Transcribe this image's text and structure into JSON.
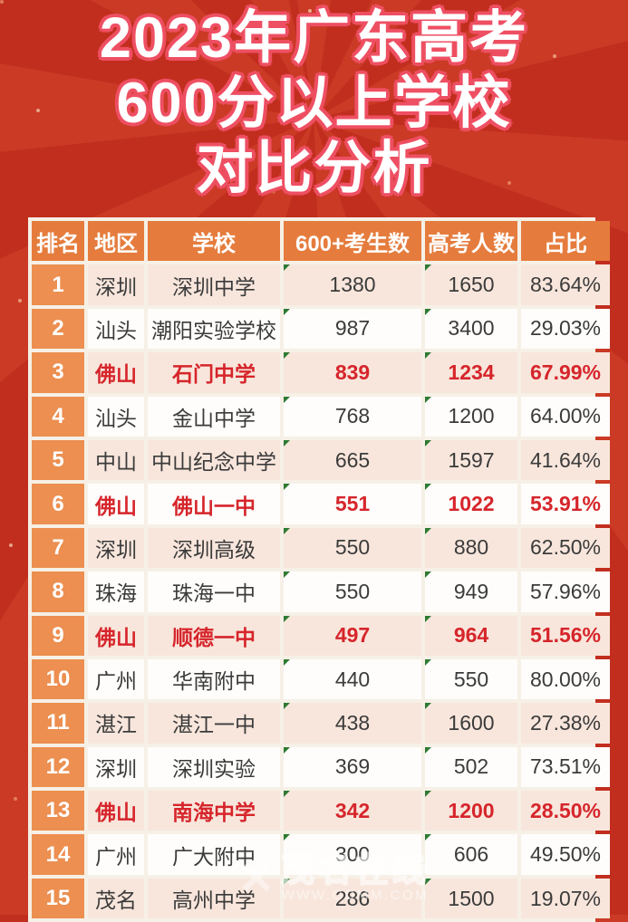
{
  "title": {
    "lines": [
      "2023年广东高考",
      "600分以上学校",
      "对比分析"
    ]
  },
  "chart_data": {
    "type": "table",
    "title": "2023年广东高考600分以上学校对比分析",
    "columns": [
      "排名",
      "地区",
      "学校",
      "600+考生数",
      "高考人数",
      "占比"
    ],
    "rows": [
      [
        "1",
        "深圳",
        "深圳中学",
        "1380",
        "1650",
        "83.64%"
      ],
      [
        "2",
        "汕头",
        "潮阳实验学校",
        "987",
        "3400",
        "29.03%"
      ],
      [
        "3",
        "佛山",
        "石门中学",
        "839",
        "1234",
        "67.99%"
      ],
      [
        "4",
        "汕头",
        "金山中学",
        "768",
        "1200",
        "64.00%"
      ],
      [
        "5",
        "中山",
        "中山纪念中学",
        "665",
        "1597",
        "41.64%"
      ],
      [
        "6",
        "佛山",
        "佛山一中",
        "551",
        "1022",
        "53.91%"
      ],
      [
        "7",
        "深圳",
        "深圳高级",
        "550",
        "880",
        "62.50%"
      ],
      [
        "8",
        "珠海",
        "珠海一中",
        "550",
        "949",
        "57.96%"
      ],
      [
        "9",
        "佛山",
        "顺德一中",
        "497",
        "964",
        "51.56%"
      ],
      [
        "10",
        "广州",
        "华南附中",
        "440",
        "550",
        "80.00%"
      ],
      [
        "11",
        "湛江",
        "湛江一中",
        "438",
        "1600",
        "27.38%"
      ],
      [
        "12",
        "深圳",
        "深圳实验",
        "369",
        "502",
        "73.51%"
      ],
      [
        "13",
        "佛山",
        "南海中学",
        "342",
        "1200",
        "28.50%"
      ],
      [
        "14",
        "广州",
        "广大附中",
        "300",
        "606",
        "49.50%"
      ],
      [
        "15",
        "茂名",
        "高州中学",
        "286",
        "1500",
        "19.07%"
      ]
    ],
    "highlighted_ranks": [
      3,
      6,
      9,
      13
    ],
    "highlight_color": "#d6252b",
    "header_color": "#e57c3d",
    "rank_column_color": "#ec8f50",
    "row_colors": [
      "#f8e6dc",
      "#fefdfb"
    ]
  },
  "watermark": {
    "logo": "✕",
    "name": "茂名在线",
    "url": "WWW.GDMM.COM"
  },
  "colors": {
    "background_red": "#c22e1e",
    "ray_red": "#cb3a25",
    "title_fill": "#ffffff",
    "title_outline": "#ee4f62",
    "border": "#f6f0e6",
    "text_dark": "#3b3b3b",
    "green_marker": "#2e7a33"
  }
}
